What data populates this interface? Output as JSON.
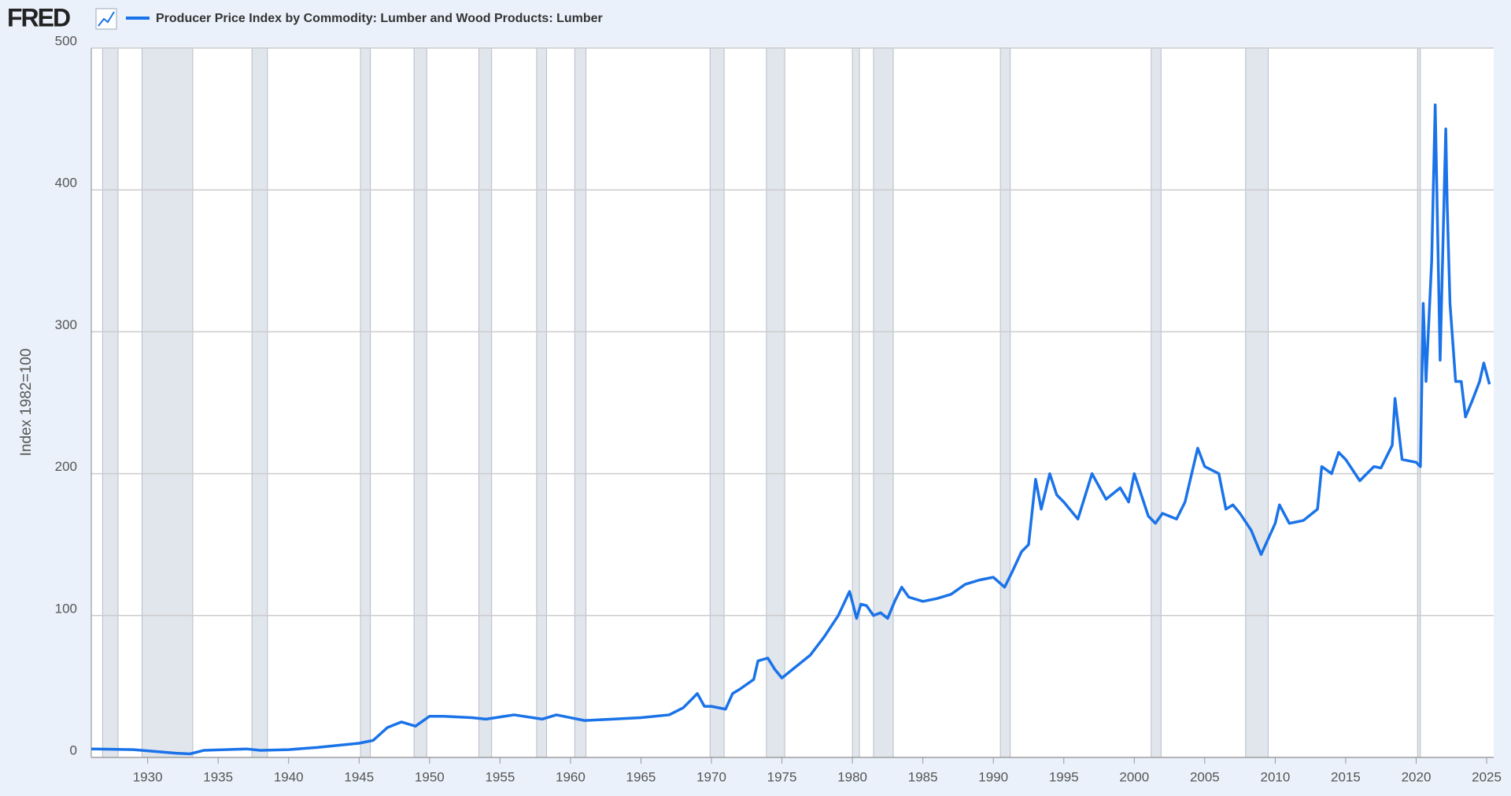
{
  "logo": "FRED",
  "chart_data": {
    "type": "line",
    "y_label": "Index 1982=100",
    "xlim": [
      1926,
      2025.5
    ],
    "ylim": [
      0,
      500
    ],
    "xticks": [
      1930,
      1935,
      1940,
      1945,
      1950,
      1955,
      1960,
      1965,
      1970,
      1975,
      1980,
      1985,
      1990,
      1995,
      2000,
      2005,
      2010,
      2015,
      2020,
      2025
    ],
    "yticks": [
      0,
      100,
      200,
      300,
      400,
      500
    ],
    "grid": true,
    "recessions": [
      [
        1926.8,
        1927.9
      ],
      [
        1929.6,
        1933.2
      ],
      [
        1937.4,
        1938.5
      ],
      [
        1945.1,
        1945.8
      ],
      [
        1948.9,
        1949.8
      ],
      [
        1953.5,
        1954.4
      ],
      [
        1957.6,
        1958.3
      ],
      [
        1960.3,
        1961.1
      ],
      [
        1969.9,
        1970.9
      ],
      [
        1973.9,
        1975.2
      ],
      [
        1980.0,
        1980.5
      ],
      [
        1981.5,
        1982.9
      ],
      [
        1990.5,
        1991.2
      ],
      [
        2001.2,
        2001.9
      ],
      [
        2007.9,
        2009.5
      ],
      [
        2020.1,
        2020.3
      ]
    ],
    "series": [
      {
        "name": "Producer Price Index by Commodity: Lumber and Wood Products: Lumber",
        "color": "#1a73e8",
        "x": [
          1926,
          1929,
          1932,
          1933,
          1934,
          1937,
          1938,
          1940,
          1942,
          1945,
          1946,
          1947,
          1948,
          1949,
          1950,
          1951,
          1953,
          1954,
          1956,
          1958,
          1959,
          1960,
          1961,
          1963,
          1965,
          1967,
          1968,
          1969,
          1969.5,
          1970,
          1971,
          1971.5,
          1972,
          1973,
          1973.3,
          1974,
          1974.5,
          1975,
          1976,
          1977,
          1978,
          1979,
          1979.8,
          1980.3,
          1980.6,
          1981,
          1981.5,
          1982,
          1982.5,
          1983,
          1983.5,
          1984,
          1985,
          1986,
          1987,
          1988,
          1989,
          1990,
          1990.8,
          1991.3,
          1992,
          1992.5,
          1993,
          1993.4,
          1994,
          1994.5,
          1995,
          1996,
          1997,
          1998,
          1999,
          1999.6,
          2000,
          2000.5,
          2001,
          2001.5,
          2002,
          2003,
          2003.6,
          2004.5,
          2005,
          2006,
          2006.5,
          2007,
          2007.5,
          2008.3,
          2009,
          2010,
          2010.3,
          2011,
          2012,
          2013,
          2013.3,
          2014,
          2014.5,
          2015,
          2016,
          2017,
          2017.5,
          2018.3,
          2018.5,
          2019,
          2020,
          2020.3,
          2020.5,
          2020.7,
          2021.1,
          2021.35,
          2021.7,
          2022.1,
          2022.2,
          2022.4,
          2022.8,
          2023.2,
          2023.5,
          2024,
          2024.5,
          2024.8,
          2025.2
        ],
        "values": [
          6,
          5.5,
          3,
          2.5,
          5,
          6,
          5,
          5.5,
          7,
          10,
          12,
          21,
          25,
          22,
          29,
          29,
          28,
          27,
          30,
          27,
          30,
          28,
          26,
          27,
          28,
          30,
          35,
          45,
          36,
          36,
          34,
          45,
          48,
          55,
          68,
          70,
          62,
          56,
          64,
          72,
          85,
          100,
          117,
          98,
          108,
          107,
          100,
          102,
          98,
          110,
          120,
          113,
          110,
          112,
          115,
          122,
          125,
          127,
          120,
          130,
          145,
          150,
          196,
          175,
          200,
          185,
          180,
          168,
          200,
          182,
          190,
          180,
          200,
          185,
          170,
          165,
          172,
          168,
          180,
          218,
          205,
          200,
          175,
          178,
          172,
          160,
          143,
          165,
          178,
          165,
          167,
          175,
          205,
          200,
          215,
          210,
          195,
          205,
          204,
          220,
          253,
          210,
          208,
          205,
          320,
          265,
          350,
          460,
          280,
          443,
          390,
          320,
          265,
          265,
          240,
          252,
          265,
          278,
          263
        ]
      }
    ]
  }
}
